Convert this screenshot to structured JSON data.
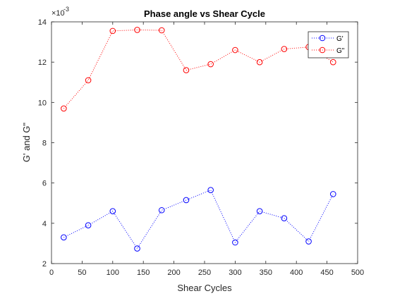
{
  "chart_data": {
    "type": "line",
    "title": "Phase angle vs Shear Cycle",
    "xlabel": "Shear Cycles",
    "ylabel": "G' and G\"",
    "y_multiplier": "×10",
    "y_exponent": "-3",
    "xlim": [
      0,
      500
    ],
    "ylim": [
      2,
      14
    ],
    "xticks": [
      0,
      50,
      100,
      150,
      200,
      250,
      300,
      350,
      400,
      450,
      500
    ],
    "yticks": [
      2,
      4,
      6,
      8,
      10,
      12,
      14
    ],
    "grid": false,
    "legend_position": "top-right",
    "x": [
      20,
      60,
      100,
      140,
      180,
      220,
      260,
      300,
      340,
      380,
      420,
      460
    ],
    "series": [
      {
        "name": "G'",
        "color": "#0000ff",
        "style": "dotted",
        "marker": "circle",
        "values": [
          3.3,
          3.9,
          4.6,
          2.75,
          4.65,
          5.15,
          5.65,
          3.05,
          4.6,
          4.25,
          3.1,
          5.45
        ]
      },
      {
        "name": "G\"",
        "color": "#ff0000",
        "style": "dotted",
        "marker": "circle",
        "values": [
          9.7,
          11.1,
          13.55,
          13.6,
          13.58,
          11.6,
          11.9,
          12.6,
          12.0,
          12.65,
          12.75,
          12.0
        ]
      }
    ]
  }
}
